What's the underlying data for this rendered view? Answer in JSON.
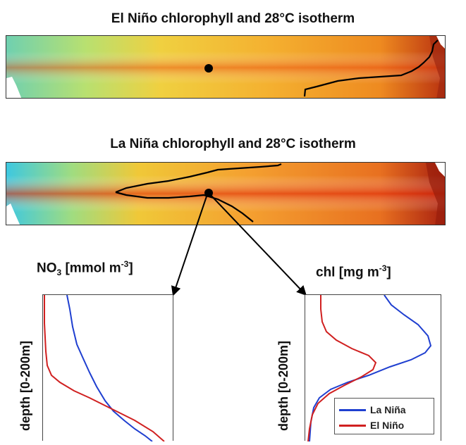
{
  "maps": [
    {
      "title": "El Niño chlorophyll and 28°C isotherm"
    },
    {
      "title": "La Niña chlorophyll and 28°C isotherm"
    }
  ],
  "profiles": {
    "no3": {
      "label_main": "NO",
      "label_sub": "3",
      "label_unit": " [mmol m",
      "label_exp": "-3",
      "label_close": "]"
    },
    "chl": {
      "label_main": "chl [mg m",
      "label_exp": "-3",
      "label_close": "]"
    },
    "ylabel": "depth [0-200m]"
  },
  "legend": [
    {
      "label": "La Niña",
      "color": "#1f3fd0"
    },
    {
      "label": "El Niño",
      "color": "#d02020"
    }
  ],
  "colors": {
    "isotherm": "#000000",
    "marker": "#000000"
  }
}
